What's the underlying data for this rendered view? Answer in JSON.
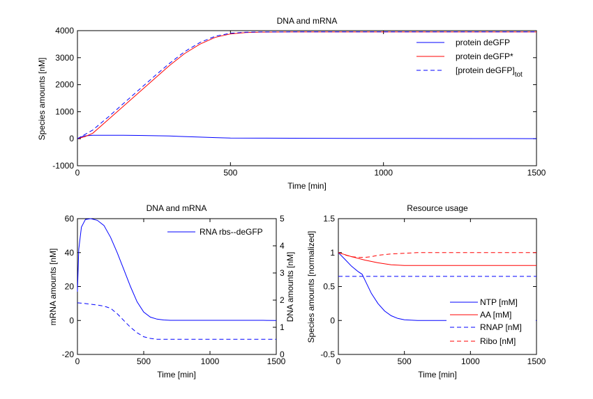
{
  "colors": {
    "blue": "#0000ff",
    "red": "#ff0000",
    "axis": "#000000",
    "background": "#ffffff"
  },
  "chart_data": [
    {
      "id": "top",
      "type": "line",
      "title": "DNA and mRNA",
      "xlabel": "Time [min]",
      "ylabel": "Species amounts [nM]",
      "xlim": [
        0,
        1500
      ],
      "ylim": [
        -1000,
        4000
      ],
      "xticks": [
        0,
        500,
        1000,
        1500
      ],
      "yticks": [
        -1000,
        0,
        1000,
        2000,
        3000,
        4000
      ],
      "grid": false,
      "legend_position": "top-right",
      "series": [
        {
          "name": "protein deGFP",
          "color": "#0000ff",
          "dash": "solid",
          "x": [
            0,
            20,
            50,
            100,
            150,
            200,
            250,
            300,
            350,
            400,
            450,
            500,
            600,
            700,
            800,
            900,
            1000,
            1100,
            1200,
            1300,
            1400,
            1500
          ],
          "y": [
            0,
            100,
            130,
            130,
            128,
            120,
            110,
            100,
            80,
            60,
            40,
            25,
            20,
            18,
            16,
            14,
            12,
            10,
            8,
            6,
            4,
            3
          ]
        },
        {
          "name": "protein deGFP*",
          "color": "#ff0000",
          "dash": "solid",
          "x": [
            0,
            25,
            50,
            100,
            150,
            200,
            250,
            300,
            350,
            400,
            450,
            500,
            550,
            600,
            700,
            800,
            900,
            1000,
            1100,
            1200,
            1300,
            1400,
            1500
          ],
          "y": [
            0,
            80,
            200,
            700,
            1200,
            1700,
            2200,
            2700,
            3150,
            3500,
            3750,
            3880,
            3930,
            3945,
            3950,
            3950,
            3950,
            3950,
            3950,
            3950,
            3950,
            3950,
            3950
          ]
        },
        {
          "name": "[protein deGFP]",
          "name_sub": "tot",
          "color": "#0000ff",
          "dash": "dashed",
          "x": [
            0,
            20,
            50,
            100,
            150,
            200,
            250,
            300,
            350,
            400,
            450,
            500,
            550,
            600,
            700,
            800,
            900,
            1000,
            1100,
            1200,
            1300,
            1400,
            1500
          ],
          "y": [
            0,
            130,
            320,
            800,
            1300,
            1800,
            2300,
            2780,
            3220,
            3560,
            3790,
            3905,
            3940,
            3950,
            3953,
            3953,
            3953,
            3953,
            3953,
            3953,
            3953,
            3953,
            3953
          ]
        }
      ]
    },
    {
      "id": "bl",
      "type": "line",
      "title": "DNA and mRNA",
      "xlabel": "Time [min]",
      "ylabel": "mRNA amounts [nM]",
      "y2label": "DNA amounts [nM]",
      "xlim": [
        0,
        1500
      ],
      "ylim": [
        -20,
        60
      ],
      "y2lim": [
        0,
        5
      ],
      "xticks": [
        0,
        500,
        1000,
        1500
      ],
      "yticks": [
        -20,
        0,
        20,
        40,
        60
      ],
      "y2ticks": [
        0,
        1,
        2,
        3,
        4,
        5
      ],
      "grid": false,
      "legend_position": "top-right",
      "series": [
        {
          "name": "RNA rbs--deGFP",
          "color": "#0000ff",
          "dash": "solid",
          "axis": "left",
          "x": [
            0,
            10,
            30,
            60,
            100,
            150,
            200,
            250,
            300,
            350,
            400,
            450,
            500,
            550,
            600,
            650,
            700,
            800,
            1000,
            1200,
            1400,
            1500
          ],
          "y": [
            17,
            42,
            55,
            59.5,
            60,
            59,
            56,
            49,
            40,
            30,
            20,
            11,
            5,
            2,
            0.8,
            0.3,
            0.1,
            0.1,
            0.1,
            0.1,
            0.1,
            0
          ]
        },
        {
          "color": "#0000ff",
          "dash": "dashed",
          "axis": "right",
          "x": [
            0,
            50,
            100,
            150,
            200,
            250,
            300,
            350,
            400,
            450,
            500,
            550,
            600,
            700,
            800,
            1000,
            1200,
            1400,
            1500
          ],
          "y": [
            1.9,
            1.88,
            1.85,
            1.82,
            1.78,
            1.7,
            1.5,
            1.25,
            1.0,
            0.8,
            0.65,
            0.59,
            0.56,
            0.56,
            0.56,
            0.56,
            0.56,
            0.56,
            0.56
          ]
        }
      ]
    },
    {
      "id": "br",
      "type": "line",
      "title": "Resource usage",
      "xlabel": "Time [min]",
      "ylabel": "Species amounts [normalized]",
      "xlim": [
        0,
        1500
      ],
      "ylim": [
        -0.5,
        1.5
      ],
      "xticks": [
        0,
        500,
        1000,
        1500
      ],
      "yticks": [
        -0.5,
        0,
        0.5,
        1,
        1.5
      ],
      "grid": false,
      "legend_position": "bottom-right",
      "series": [
        {
          "name": "NTP [mM]",
          "color": "#0000ff",
          "dash": "solid",
          "x": [
            0,
            50,
            100,
            150,
            180,
            200,
            250,
            300,
            350,
            400,
            450,
            500,
            550,
            600,
            800,
            1000,
            1200,
            1400,
            1500
          ],
          "y": [
            1,
            0.9,
            0.8,
            0.72,
            0.68,
            0.6,
            0.4,
            0.25,
            0.14,
            0.07,
            0.03,
            0.01,
            0.005,
            0,
            0,
            0,
            0,
            0,
            0
          ]
        },
        {
          "name": "AA [mM]",
          "color": "#ff0000",
          "dash": "solid",
          "x": [
            0,
            50,
            100,
            200,
            300,
            400,
            500,
            600,
            800,
            1000,
            1200,
            1400,
            1500
          ],
          "y": [
            1,
            0.97,
            0.94,
            0.89,
            0.85,
            0.82,
            0.81,
            0.81,
            0.81,
            0.81,
            0.81,
            0.81,
            0.81
          ]
        },
        {
          "name": "RNAP [nM]",
          "color": "#0000ff",
          "dash": "dashed",
          "x": [
            0,
            1500
          ],
          "y": [
            0.65,
            0.65
          ]
        },
        {
          "name": "Ribo [nM]",
          "color": "#ff0000",
          "dash": "dashed",
          "x": [
            0,
            30,
            60,
            100,
            150,
            200,
            250,
            300,
            400,
            500,
            600,
            800,
            1000,
            1200,
            1400,
            1500
          ],
          "y": [
            1,
            0.98,
            0.96,
            0.94,
            0.93,
            0.93,
            0.94,
            0.96,
            0.98,
            0.99,
            1.0,
            1.0,
            1.0,
            1.0,
            1.0,
            1.0
          ]
        }
      ]
    }
  ]
}
